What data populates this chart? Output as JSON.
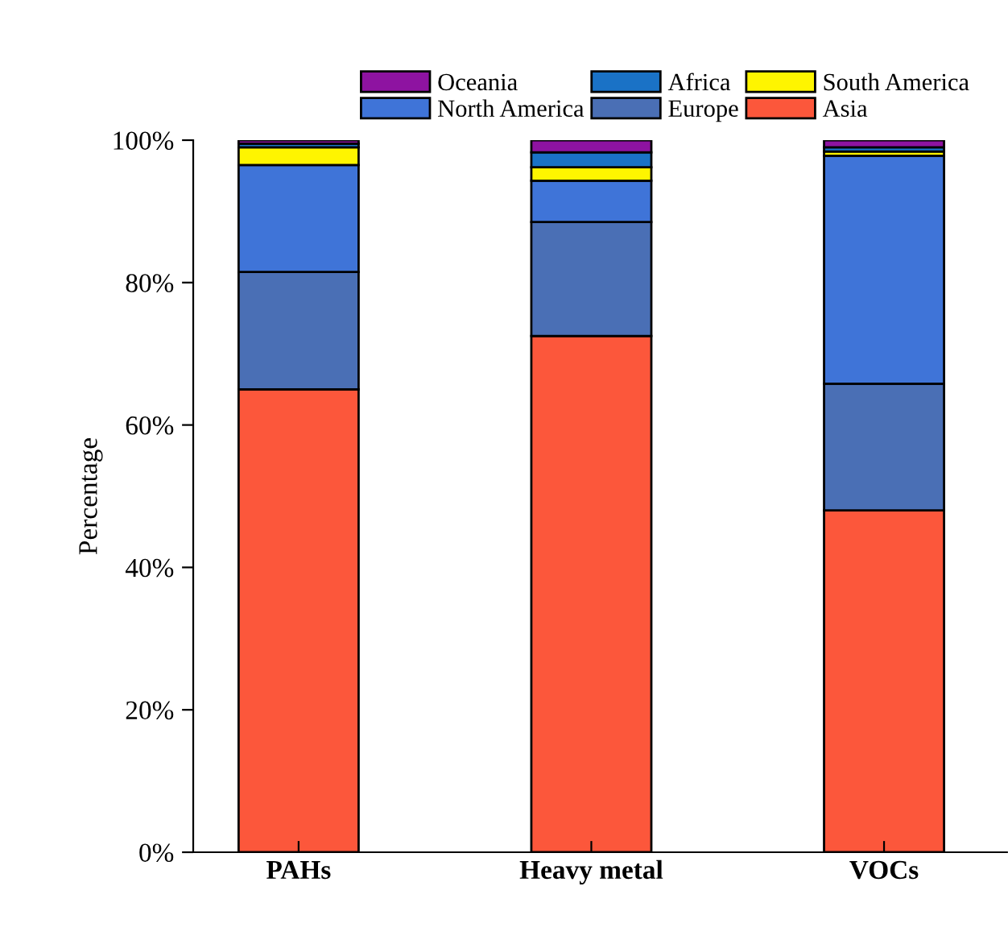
{
  "chart_data": {
    "type": "bar",
    "stacked": true,
    "ylabel": "Percentage",
    "categories": [
      "PAHs",
      "Heavy metal",
      "VOCs"
    ],
    "series": [
      {
        "name": "Asia",
        "color": "#fc573b",
        "values": [
          65,
          72.5,
          48
        ]
      },
      {
        "name": "Europe",
        "color": "#4a6fb5",
        "values": [
          16.5,
          16,
          17.8
        ]
      },
      {
        "name": "North America",
        "color": "#3f74d8",
        "values": [
          15,
          5.8,
          32
        ]
      },
      {
        "name": "South America",
        "color": "#fef500",
        "values": [
          2.5,
          1.9,
          0.6
        ]
      },
      {
        "name": "Africa",
        "color": "#1a72c6",
        "values": [
          0.5,
          2.1,
          0.6
        ]
      },
      {
        "name": "Oceania",
        "color": "#8e13a1",
        "values": [
          0.5,
          1.7,
          1.0
        ]
      }
    ],
    "ylim": [
      0,
      100
    ],
    "yticks": [
      {
        "value": 0,
        "label": "0%"
      },
      {
        "value": 20,
        "label": "20%"
      },
      {
        "value": 40,
        "label": "40%"
      },
      {
        "value": 60,
        "label": "60%"
      },
      {
        "value": 80,
        "label": "80%"
      },
      {
        "value": 100,
        "label": "100%"
      }
    ],
    "grid": false,
    "legend": "top"
  }
}
